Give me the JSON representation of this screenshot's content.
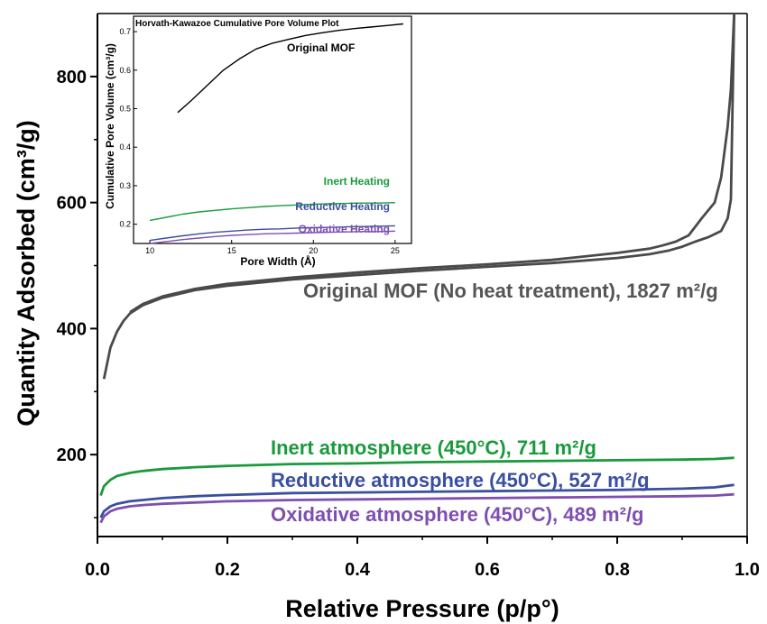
{
  "chart_data": [
    {
      "type": "line",
      "xlabel": "Relative Pressure (p/p°)",
      "ylabel": "Quantity Adsorbed (cm³/g)",
      "xlim": [
        0.0,
        1.0
      ],
      "ylim": [
        70,
        900
      ],
      "xticks": [
        0.0,
        0.2,
        0.4,
        0.6,
        0.8,
        1.0
      ],
      "xtick_labels": [
        "0.0",
        "0.2",
        "0.4",
        "0.6",
        "0.8",
        "1.0"
      ],
      "yticks": [
        200,
        400,
        600,
        800
      ],
      "ytick_labels": [
        "200",
        "400",
        "600",
        "800"
      ],
      "grid": false,
      "series": [
        {
          "name": "Original MOF (No heat treatment), 1827 m²/g",
          "color": "#4a4a4a",
          "branch": "adsorption",
          "x": [
            0.01,
            0.015,
            0.02,
            0.03,
            0.04,
            0.05,
            0.07,
            0.1,
            0.15,
            0.2,
            0.3,
            0.4,
            0.5,
            0.6,
            0.7,
            0.8,
            0.85,
            0.88,
            0.9,
            0.92,
            0.94,
            0.96,
            0.97,
            0.975,
            0.98
          ],
          "y": [
            320,
            345,
            370,
            395,
            412,
            424,
            437,
            449,
            461,
            468,
            478,
            485,
            492,
            498,
            504,
            512,
            518,
            524,
            530,
            538,
            545,
            555,
            575,
            605,
            900
          ]
        },
        {
          "name": "",
          "color": "#4a4a4a",
          "branch": "desorption",
          "x": [
            0.98,
            0.975,
            0.97,
            0.96,
            0.95,
            0.93,
            0.91,
            0.89,
            0.87,
            0.85,
            0.8,
            0.7,
            0.6,
            0.5,
            0.4,
            0.3,
            0.2,
            0.15,
            0.1,
            0.07,
            0.05
          ],
          "y": [
            900,
            780,
            720,
            640,
            600,
            575,
            548,
            538,
            532,
            527,
            520,
            509,
            502,
            496,
            489,
            481,
            471,
            463,
            451,
            439,
            426
          ]
        },
        {
          "name": "Inert atmosphere (450°C), 711 m²/g",
          "color": "#1a9a3c",
          "x": [
            0.005,
            0.01,
            0.02,
            0.03,
            0.05,
            0.07,
            0.1,
            0.15,
            0.2,
            0.3,
            0.4,
            0.5,
            0.6,
            0.7,
            0.8,
            0.9,
            0.95,
            0.98
          ],
          "y": [
            135,
            150,
            160,
            166,
            171,
            174,
            177,
            180,
            182,
            185,
            186,
            188,
            189,
            190,
            191,
            192,
            193,
            195
          ]
        },
        {
          "name": "Reductive atmosphere (450°C), 527 m²/g",
          "color": "#3a4fa0",
          "x": [
            0.005,
            0.01,
            0.02,
            0.03,
            0.05,
            0.07,
            0.1,
            0.15,
            0.2,
            0.3,
            0.4,
            0.5,
            0.6,
            0.7,
            0.8,
            0.9,
            0.95,
            0.98
          ],
          "y": [
            100,
            110,
            118,
            122,
            126,
            128,
            131,
            134,
            136,
            139,
            140,
            141,
            142,
            143,
            144,
            146,
            148,
            152
          ]
        },
        {
          "name": "Oxidative atmosphere (450°C), 489 m²/g",
          "color": "#7f4fb0",
          "x": [
            0.005,
            0.01,
            0.02,
            0.03,
            0.05,
            0.07,
            0.1,
            0.15,
            0.2,
            0.3,
            0.4,
            0.5,
            0.6,
            0.7,
            0.8,
            0.9,
            0.95,
            0.98
          ],
          "y": [
            92,
            102,
            110,
            114,
            118,
            120,
            122,
            124,
            126,
            128,
            129,
            130,
            131,
            132,
            133,
            134,
            135,
            137
          ]
        }
      ]
    },
    {
      "type": "line",
      "title": "Horvath-Kawazoe Cumulative Pore Volume Plot",
      "xlabel": "Pore Width (Å)",
      "ylabel": "Cumulative Pore Volume (cm³/g)",
      "xlim": [
        9,
        26
      ],
      "ylim": [
        0.15,
        0.74
      ],
      "xticks": [
        10,
        15,
        20,
        25
      ],
      "xtick_labels": [
        "10",
        "15",
        "20",
        "25"
      ],
      "yticks": [
        0.2,
        0.3,
        0.4,
        0.5,
        0.6,
        0.7
      ],
      "ytick_labels": [
        "0.2",
        "0.3",
        "0.4",
        "0.5",
        "0.6",
        "0.7"
      ],
      "grid": false,
      "series": [
        {
          "name": "Original MOF",
          "color": "#000000",
          "x": [
            11.7,
            12.5,
            13.5,
            14.5,
            15.5,
            16.5,
            17.5,
            18.5,
            19.5,
            20.5,
            21.5,
            22.5,
            23.5,
            24.5,
            25.5
          ],
          "y": [
            0.49,
            0.52,
            0.56,
            0.6,
            0.63,
            0.655,
            0.67,
            0.68,
            0.69,
            0.697,
            0.703,
            0.708,
            0.712,
            0.716,
            0.72
          ]
        },
        {
          "name": "Inert Heating",
          "color": "#1a9a3c",
          "x": [
            10,
            11,
            12,
            13,
            14,
            15,
            16,
            17,
            18,
            19,
            20,
            21,
            22,
            23,
            24,
            25
          ],
          "y": [
            0.21,
            0.218,
            0.226,
            0.232,
            0.236,
            0.24,
            0.243,
            0.246,
            0.248,
            0.25,
            0.252,
            0.253,
            0.254,
            0.255,
            0.255,
            0.256
          ]
        },
        {
          "name": "Reductive Heating",
          "color": "#3a4fa0",
          "x": [
            10,
            11,
            12,
            13,
            14,
            15,
            16,
            17,
            18,
            19,
            20,
            21,
            22,
            23,
            24,
            25
          ],
          "y": [
            0.158,
            0.164,
            0.17,
            0.175,
            0.179,
            0.182,
            0.185,
            0.187,
            0.188,
            0.19,
            0.191,
            0.192,
            0.193,
            0.194,
            0.195,
            0.196
          ]
        },
        {
          "name": "Oxidative Heating",
          "color": "#7f4fb0",
          "x": [
            10,
            11,
            12,
            13,
            14,
            15,
            16,
            17,
            18,
            19,
            20,
            21,
            22,
            23,
            24,
            25
          ],
          "y": [
            0.15,
            0.155,
            0.16,
            0.164,
            0.168,
            0.171,
            0.173,
            0.175,
            0.176,
            0.177,
            0.178,
            0.179,
            0.18,
            0.181,
            0.181,
            0.182
          ]
        }
      ]
    }
  ]
}
